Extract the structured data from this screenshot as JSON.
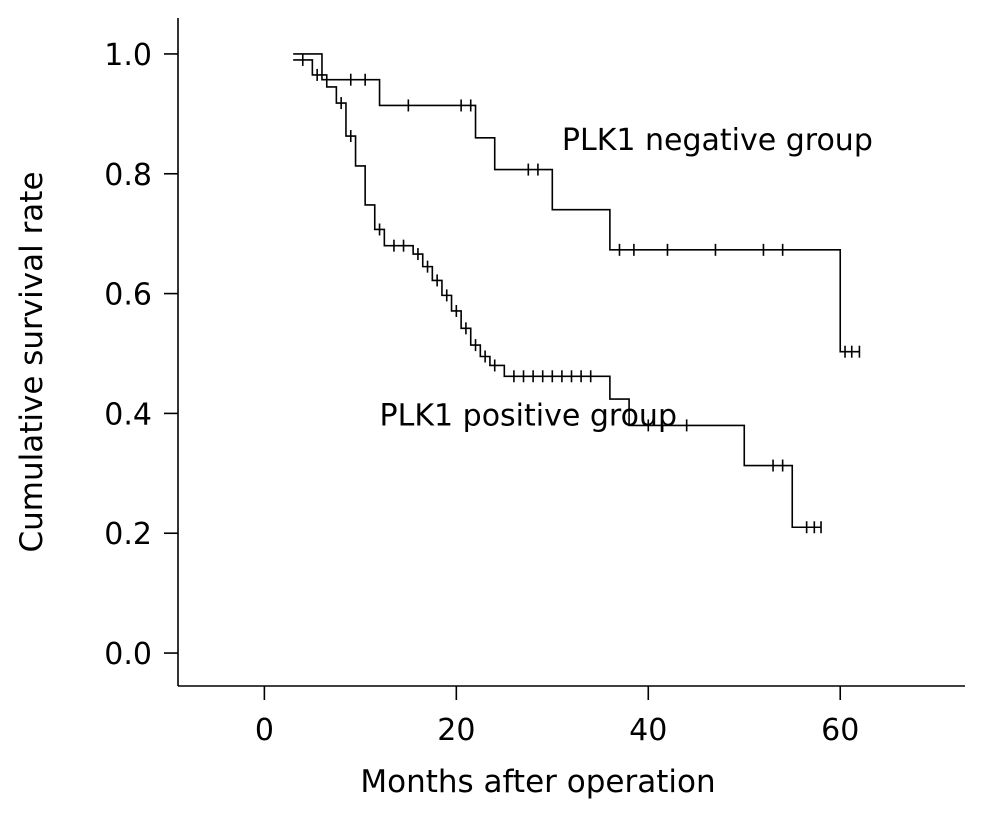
{
  "chart_data": {
    "type": "line",
    "xlabel": "Months after operation",
    "ylabel": "Cumulative survival rate",
    "xlim": [
      -9,
      73
    ],
    "ylim": [
      -0.055,
      1.06
    ],
    "x_ticks": [
      0,
      20,
      40,
      60
    ],
    "y_ticks": [
      0.0,
      0.2,
      0.4,
      0.6,
      0.8,
      1.0
    ],
    "x_tick_labels": [
      "0",
      "20",
      "40",
      "60"
    ],
    "y_tick_labels": [
      "0.0",
      "0.2",
      "0.4",
      "0.6",
      "0.8",
      "1.0"
    ],
    "grid": false,
    "series": [
      {
        "key": "negative",
        "steps": [
          {
            "x": 3,
            "y": 1.0
          },
          {
            "x": 6,
            "y": 0.957
          },
          {
            "x": 12,
            "y": 0.914
          },
          {
            "x": 22,
            "y": 0.86
          },
          {
            "x": 24,
            "y": 0.807
          },
          {
            "x": 30,
            "y": 0.74
          },
          {
            "x": 36,
            "y": 0.673
          },
          {
            "x": 60,
            "y": 0.503
          }
        ],
        "end_x": 62,
        "censored": [
          {
            "x": 9,
            "y": 0.957
          },
          {
            "x": 10.5,
            "y": 0.957
          },
          {
            "x": 15,
            "y": 0.914
          },
          {
            "x": 20.5,
            "y": 0.914
          },
          {
            "x": 21.5,
            "y": 0.914
          },
          {
            "x": 27.5,
            "y": 0.807
          },
          {
            "x": 28.5,
            "y": 0.807
          },
          {
            "x": 37,
            "y": 0.673
          },
          {
            "x": 38.5,
            "y": 0.673
          },
          {
            "x": 42,
            "y": 0.673
          },
          {
            "x": 47,
            "y": 0.673
          },
          {
            "x": 52,
            "y": 0.673
          },
          {
            "x": 54,
            "y": 0.673
          },
          {
            "x": 60.5,
            "y": 0.503
          },
          {
            "x": 61.2,
            "y": 0.503
          },
          {
            "x": 62,
            "y": 0.503
          }
        ]
      },
      {
        "key": "positive",
        "steps": [
          {
            "x": 3,
            "y": 0.99
          },
          {
            "x": 5,
            "y": 0.965
          },
          {
            "x": 6.5,
            "y": 0.945
          },
          {
            "x": 7.5,
            "y": 0.918
          },
          {
            "x": 8.5,
            "y": 0.863
          },
          {
            "x": 9.5,
            "y": 0.813
          },
          {
            "x": 10.5,
            "y": 0.748
          },
          {
            "x": 11.5,
            "y": 0.707
          },
          {
            "x": 12.5,
            "y": 0.68
          },
          {
            "x": 15.5,
            "y": 0.666
          },
          {
            "x": 16.5,
            "y": 0.645
          },
          {
            "x": 17.5,
            "y": 0.622
          },
          {
            "x": 18.5,
            "y": 0.597
          },
          {
            "x": 19.5,
            "y": 0.571
          },
          {
            "x": 20.5,
            "y": 0.542
          },
          {
            "x": 21.5,
            "y": 0.514
          },
          {
            "x": 22.5,
            "y": 0.495
          },
          {
            "x": 23.5,
            "y": 0.48
          },
          {
            "x": 25,
            "y": 0.462
          },
          {
            "x": 36,
            "y": 0.424
          },
          {
            "x": 38,
            "y": 0.38
          },
          {
            "x": 50,
            "y": 0.313
          },
          {
            "x": 55,
            "y": 0.21
          }
        ],
        "end_x": 58,
        "censored": [
          {
            "x": 4,
            "y": 0.99
          },
          {
            "x": 5.5,
            "y": 0.965
          },
          {
            "x": 8,
            "y": 0.918
          },
          {
            "x": 9,
            "y": 0.863
          },
          {
            "x": 12,
            "y": 0.707
          },
          {
            "x": 13.5,
            "y": 0.68
          },
          {
            "x": 14.5,
            "y": 0.68
          },
          {
            "x": 16,
            "y": 0.666
          },
          {
            "x": 17,
            "y": 0.645
          },
          {
            "x": 18,
            "y": 0.622
          },
          {
            "x": 19,
            "y": 0.597
          },
          {
            "x": 20,
            "y": 0.571
          },
          {
            "x": 21,
            "y": 0.542
          },
          {
            "x": 22,
            "y": 0.514
          },
          {
            "x": 23,
            "y": 0.495
          },
          {
            "x": 24,
            "y": 0.48
          },
          {
            "x": 26,
            "y": 0.462
          },
          {
            "x": 27,
            "y": 0.462
          },
          {
            "x": 28,
            "y": 0.462
          },
          {
            "x": 29,
            "y": 0.462
          },
          {
            "x": 30,
            "y": 0.462
          },
          {
            "x": 31,
            "y": 0.462
          },
          {
            "x": 32,
            "y": 0.462
          },
          {
            "x": 33,
            "y": 0.462
          },
          {
            "x": 34,
            "y": 0.462
          },
          {
            "x": 40,
            "y": 0.38
          },
          {
            "x": 44,
            "y": 0.38
          },
          {
            "x": 53,
            "y": 0.313
          },
          {
            "x": 54,
            "y": 0.313
          },
          {
            "x": 56.5,
            "y": 0.21
          },
          {
            "x": 57.3,
            "y": 0.21
          },
          {
            "x": 58,
            "y": 0.21
          }
        ]
      }
    ],
    "annotations": [
      {
        "text": "PLK1 negative group",
        "x": 31,
        "y": 0.84
      },
      {
        "text": "PLK1 positive group",
        "x": 12,
        "y": 0.38
      }
    ]
  }
}
